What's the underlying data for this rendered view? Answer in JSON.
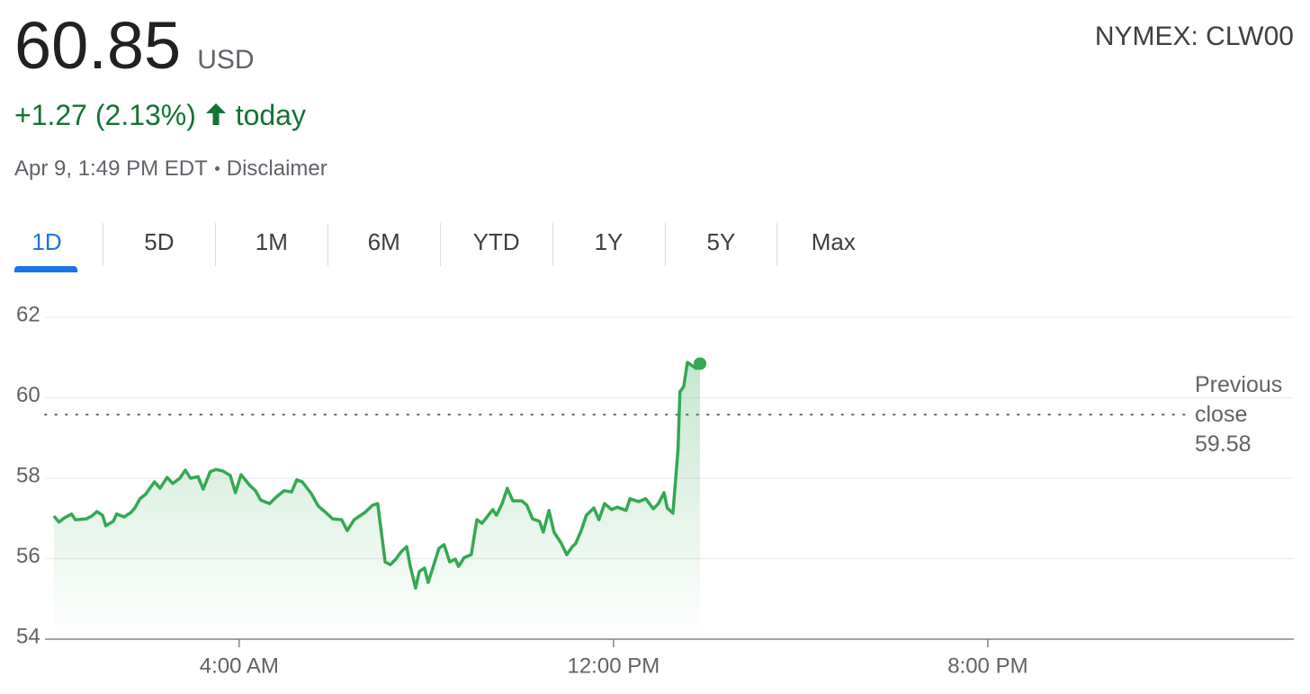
{
  "header": {
    "price": "60.85",
    "currency": "USD",
    "exchange": "NYMEX: CLW00",
    "change": "+1.27 (2.13%)",
    "change_period": "today",
    "timestamp": "Apr 9, 1:49 PM EDT",
    "disclaimer": "Disclaimer"
  },
  "tabs": {
    "items": [
      "1D",
      "5D",
      "1M",
      "6M",
      "YTD",
      "1Y",
      "5Y",
      "Max"
    ],
    "active": 0
  },
  "chart_data": {
    "type": "line",
    "color": "#34a853",
    "x": [
      0.04,
      0.15,
      0.27,
      0.42,
      0.5,
      0.73,
      0.85,
      0.96,
      1.08,
      1.15,
      1.31,
      1.38,
      1.54,
      1.69,
      1.77,
      1.88,
      2.0,
      2.19,
      2.31,
      2.46,
      2.58,
      2.73,
      2.85,
      2.96,
      3.12,
      3.23,
      3.38,
      3.5,
      3.65,
      3.81,
      3.92,
      4.04,
      4.23,
      4.35,
      4.46,
      4.65,
      4.81,
      4.96,
      5.12,
      5.23,
      5.35,
      5.54,
      5.69,
      5.85,
      6.0,
      6.19,
      6.31,
      6.46,
      6.69,
      6.85,
      6.96,
      7.12,
      7.23,
      7.35,
      7.46,
      7.58,
      7.65,
      7.77,
      7.85,
      7.96,
      8.04,
      8.15,
      8.27,
      8.38,
      8.5,
      8.62,
      8.69,
      8.81,
      8.96,
      9.08,
      9.19,
      9.31,
      9.42,
      9.5,
      9.62,
      9.73,
      9.85,
      10.04,
      10.15,
      10.27,
      10.42,
      10.5,
      10.62,
      10.73,
      10.88,
      11.0,
      11.12,
      11.19,
      11.31,
      11.42,
      11.58,
      11.69,
      11.81,
      11.96,
      12.08,
      12.27,
      12.35,
      12.54,
      12.69,
      12.85,
      12.96,
      13.08,
      13.15,
      13.27,
      13.38,
      13.42,
      13.5,
      13.58,
      13.69,
      13.77,
      13.85
    ],
    "values": [
      57.06,
      56.91,
      57.02,
      57.11,
      56.97,
      56.99,
      57.06,
      57.17,
      57.08,
      56.82,
      56.93,
      57.11,
      57.04,
      57.15,
      57.26,
      57.49,
      57.6,
      57.91,
      57.75,
      58.02,
      57.87,
      58.0,
      58.2,
      58.0,
      58.04,
      57.73,
      58.16,
      58.22,
      58.18,
      58.07,
      57.64,
      58.09,
      57.82,
      57.69,
      57.46,
      57.37,
      57.55,
      57.69,
      57.66,
      57.96,
      57.91,
      57.62,
      57.31,
      57.15,
      56.99,
      56.97,
      56.7,
      56.97,
      57.15,
      57.33,
      57.37,
      55.92,
      55.85,
      55.99,
      56.17,
      56.3,
      55.85,
      55.27,
      55.68,
      55.77,
      55.41,
      55.81,
      56.26,
      56.35,
      55.92,
      55.99,
      55.81,
      56.03,
      56.1,
      56.97,
      56.88,
      57.06,
      57.22,
      57.08,
      57.37,
      57.75,
      57.44,
      57.44,
      57.33,
      56.99,
      56.93,
      56.66,
      57.2,
      56.66,
      56.39,
      56.1,
      56.3,
      56.37,
      56.7,
      57.08,
      57.26,
      56.97,
      57.37,
      57.22,
      57.28,
      57.2,
      57.49,
      57.42,
      57.49,
      57.24,
      57.37,
      57.64,
      57.26,
      57.13,
      58.72,
      60.15,
      60.28,
      60.88,
      60.79,
      60.73,
      60.85
    ],
    "xlim": [
      -0.15,
      26.54
    ],
    "xticks": [
      {
        "value": 4,
        "label": "4:00 AM"
      },
      {
        "value": 12,
        "label": "12:00 PM"
      },
      {
        "value": 20,
        "label": "8:00 PM"
      }
    ],
    "ylim": [
      54,
      62
    ],
    "yticks": [
      54,
      56,
      58,
      60,
      62
    ],
    "grid": true,
    "reference_line": {
      "label": "Previous close",
      "value": 59.58
    }
  }
}
